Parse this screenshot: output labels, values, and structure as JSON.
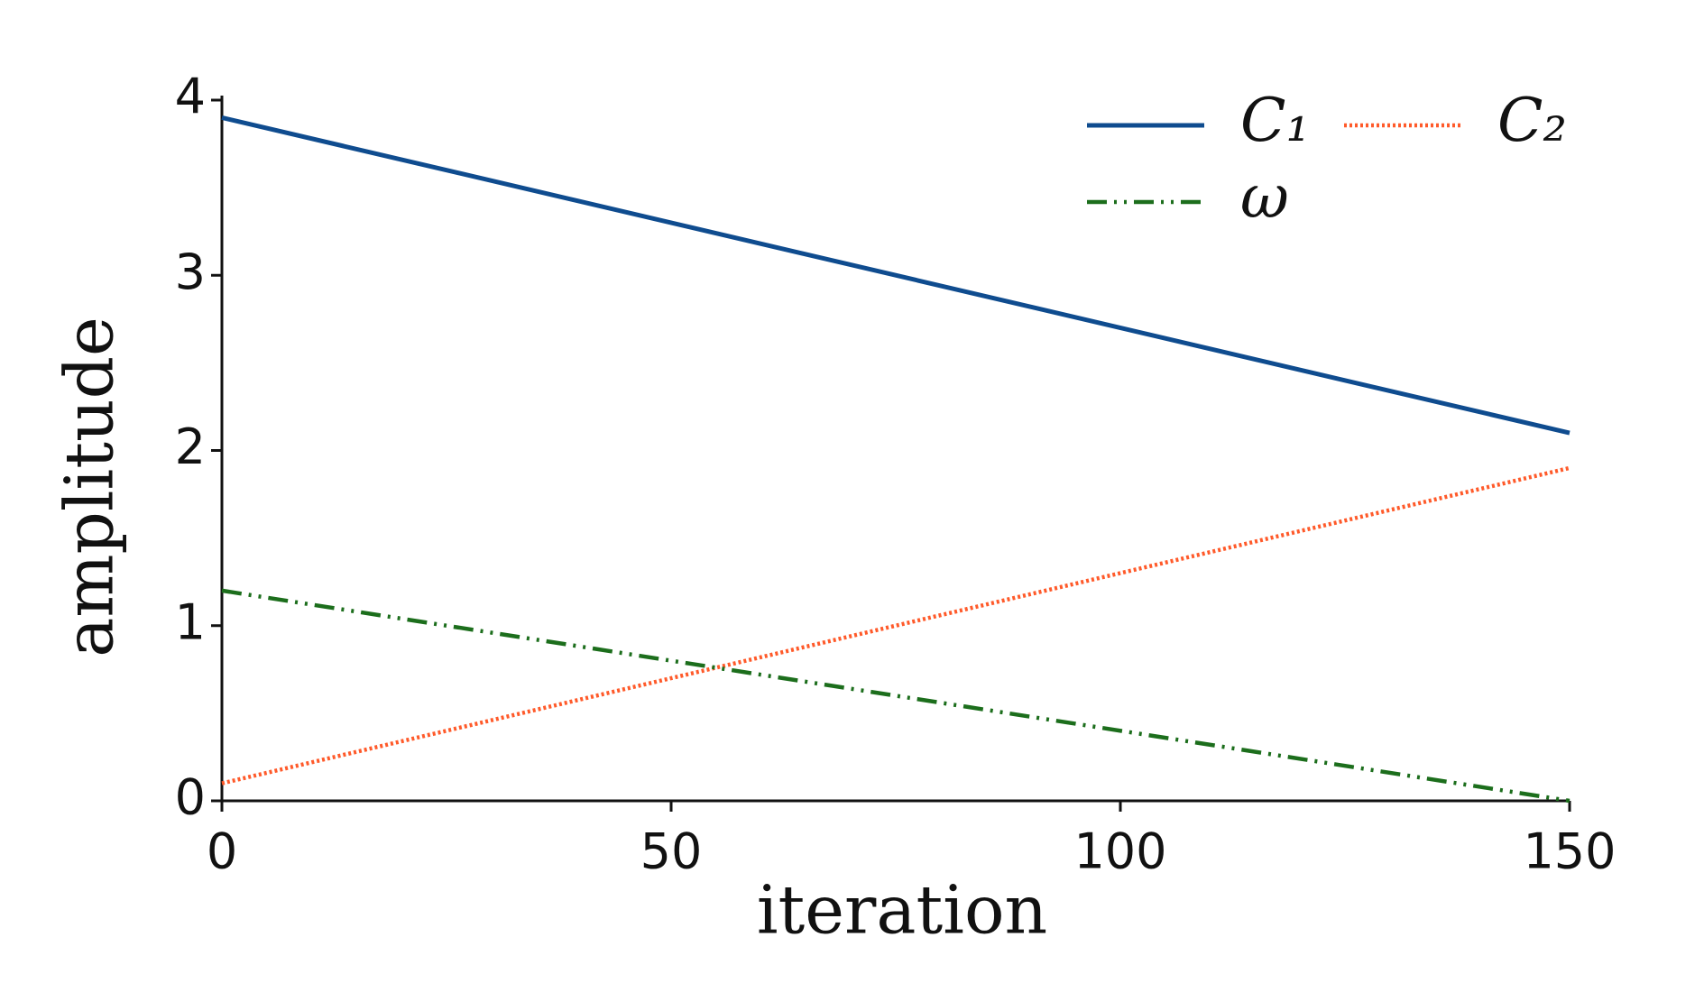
{
  "chart_data": {
    "type": "line",
    "x_label": "iteration",
    "y_label": "amplitude",
    "x": [
      0,
      150
    ],
    "series": [
      {
        "name": "C₁",
        "color": "#0f4c8f",
        "dash": "solid",
        "values": [
          3.9,
          2.1
        ]
      },
      {
        "name": "C₂",
        "color": "#ff5a2a",
        "dash": "dotted",
        "values": [
          0.1,
          1.9
        ]
      },
      {
        "name": "ω",
        "color": "#1c6e1c",
        "dash": "dashdot",
        "values": [
          1.2,
          0
        ]
      }
    ],
    "xlim": [
      0,
      150
    ],
    "xticks": [
      0,
      50,
      100,
      150
    ],
    "ylim": [
      0,
      4
    ],
    "yticks": [
      0,
      1,
      2,
      3,
      4
    ],
    "grid": false,
    "legend": "upper right"
  }
}
